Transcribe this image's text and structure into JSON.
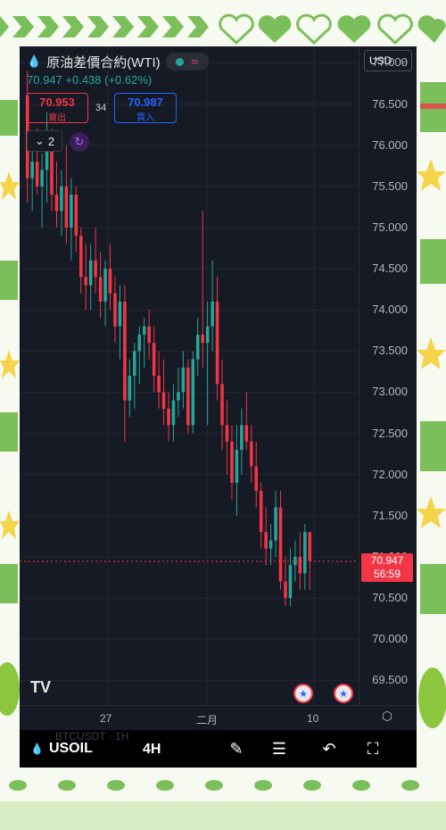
{
  "header": {
    "title": "原油差價合約(WTI)",
    "quote_price": "70.947",
    "quote_change": "+0.438 (+0.62%)"
  },
  "trade": {
    "bid_price": "70.953",
    "bid_label": "賣出",
    "spread": "34",
    "ask_price": "70.987",
    "ask_label": "買入"
  },
  "indicators": {
    "count": "2"
  },
  "currency": {
    "selected": "USD"
  },
  "price_axis": {
    "ticks": [
      "77.000",
      "76.500",
      "76.000",
      "75.500",
      "75.000",
      "74.500",
      "74.000",
      "73.500",
      "73.000",
      "72.500",
      "72.000",
      "71.500",
      "71.000",
      "70.500",
      "70.000",
      "69.500"
    ]
  },
  "last_price": {
    "value": "70.947",
    "countdown": "56:59"
  },
  "time_axis": {
    "labels": [
      "27",
      "二月",
      "10"
    ]
  },
  "bottom_bar": {
    "symbol": "USOIL",
    "interval": "4H",
    "ghost_text": "BTCUSDT · 1H"
  },
  "colors": {
    "up": "#26a69a",
    "down": "#f23645",
    "background": "#161a25",
    "accent_blue": "#2962ff"
  },
  "chart_data": {
    "type": "candlestick",
    "symbol": "USOIL",
    "interval": "4H",
    "ylim": [
      69.2,
      77.2
    ],
    "candles": [
      [
        76.6,
        76.9,
        75.3,
        75.6
      ],
      [
        75.6,
        76.0,
        75.2,
        75.8
      ],
      [
        75.8,
        76.2,
        75.4,
        75.5
      ],
      [
        75.5,
        75.9,
        75.0,
        75.7
      ],
      [
        75.7,
        76.4,
        75.3,
        76.0
      ],
      [
        76.0,
        76.2,
        75.2,
        75.4
      ],
      [
        75.4,
        75.8,
        75.0,
        75.2
      ],
      [
        75.2,
        75.7,
        74.9,
        75.5
      ],
      [
        75.5,
        76.0,
        74.8,
        75.0
      ],
      [
        75.0,
        75.6,
        74.6,
        75.4
      ],
      [
        75.4,
        75.5,
        74.7,
        74.9
      ],
      [
        74.9,
        75.0,
        74.2,
        74.4
      ],
      [
        74.4,
        74.8,
        74.0,
        74.3
      ],
      [
        74.3,
        74.8,
        74.0,
        74.6
      ],
      [
        74.6,
        75.0,
        74.2,
        74.4
      ],
      [
        74.4,
        74.7,
        73.9,
        74.1
      ],
      [
        74.1,
        74.6,
        73.8,
        74.5
      ],
      [
        74.5,
        74.8,
        74.0,
        74.2
      ],
      [
        74.2,
        74.4,
        73.6,
        73.8
      ],
      [
        73.8,
        74.3,
        73.4,
        74.1
      ],
      [
        74.1,
        74.3,
        72.4,
        72.9
      ],
      [
        72.9,
        73.4,
        72.7,
        73.2
      ],
      [
        73.2,
        73.6,
        72.8,
        73.5
      ],
      [
        73.5,
        73.8,
        73.1,
        73.7
      ],
      [
        73.7,
        73.9,
        73.3,
        73.8
      ],
      [
        73.8,
        74.0,
        73.4,
        73.6
      ],
      [
        73.6,
        73.8,
        73.0,
        73.2
      ],
      [
        73.2,
        73.5,
        72.8,
        73.0
      ],
      [
        73.0,
        73.4,
        72.6,
        72.8
      ],
      [
        72.8,
        73.0,
        72.4,
        72.6
      ],
      [
        72.6,
        73.1,
        72.4,
        72.9
      ],
      [
        72.9,
        73.3,
        72.7,
        73.0
      ],
      [
        73.0,
        73.5,
        72.8,
        73.3
      ],
      [
        73.3,
        73.4,
        72.5,
        72.6
      ],
      [
        72.6,
        73.5,
        72.5,
        73.4
      ],
      [
        73.4,
        73.9,
        73.2,
        73.7
      ],
      [
        73.7,
        75.2,
        73.3,
        73.6
      ],
      [
        73.6,
        74.1,
        72.6,
        73.8
      ],
      [
        73.8,
        74.6,
        73.5,
        74.1
      ],
      [
        74.1,
        74.4,
        72.9,
        73.1
      ],
      [
        73.1,
        73.4,
        72.3,
        72.6
      ],
      [
        72.6,
        72.9,
        72.0,
        72.4
      ],
      [
        72.4,
        72.6,
        71.7,
        71.9
      ],
      [
        71.9,
        72.6,
        71.5,
        72.3
      ],
      [
        72.3,
        72.8,
        72.0,
        72.6
      ],
      [
        72.6,
        73.0,
        72.3,
        72.4
      ],
      [
        72.4,
        72.6,
        71.9,
        72.1
      ],
      [
        72.1,
        72.4,
        71.6,
        71.8
      ],
      [
        71.8,
        71.9,
        71.1,
        71.3
      ],
      [
        71.3,
        71.6,
        70.9,
        71.1
      ],
      [
        71.1,
        71.4,
        70.9,
        71.2
      ],
      [
        71.2,
        71.8,
        71.0,
        71.6
      ],
      [
        71.6,
        71.8,
        70.6,
        70.7
      ],
      [
        70.7,
        71.0,
        70.4,
        70.5
      ],
      [
        70.5,
        71.1,
        70.4,
        70.9
      ],
      [
        70.9,
        71.2,
        70.7,
        71.0
      ],
      [
        71.0,
        71.3,
        70.6,
        70.8
      ],
      [
        70.8,
        71.4,
        70.6,
        71.3
      ],
      [
        71.3,
        71.3,
        70.6,
        70.95
      ]
    ],
    "last_price": 70.947
  }
}
